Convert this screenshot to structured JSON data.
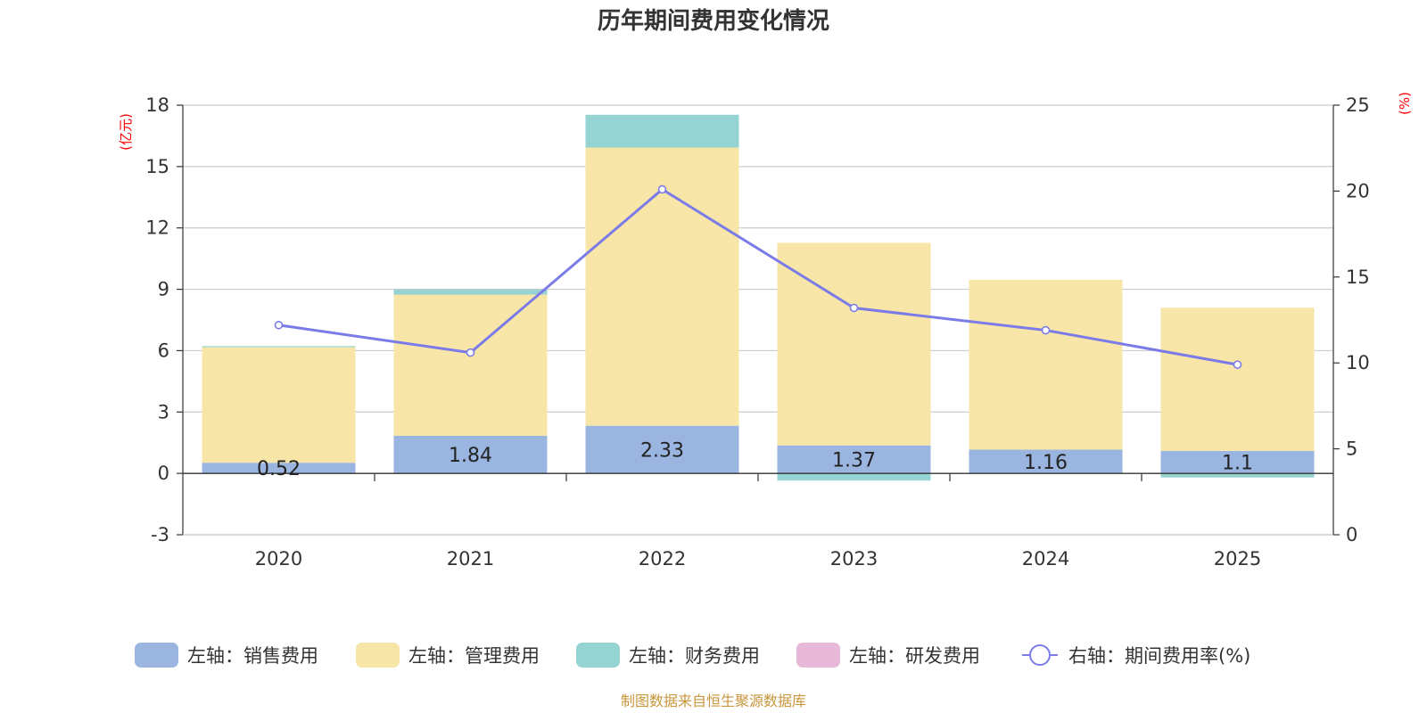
{
  "chart_data": {
    "type": "bar",
    "title": "历年期间费用变化情况",
    "categories": [
      "2020",
      "2021",
      "2022",
      "2023",
      "2024",
      "2025"
    ],
    "left_axis": {
      "unit": "(亿元)",
      "ylim": [
        -3,
        18
      ],
      "ticks": [
        "18",
        "15",
        "12",
        "9",
        "6",
        "3",
        "0",
        "-3"
      ],
      "tick_values": [
        18,
        15,
        12,
        9,
        6,
        3,
        0,
        -3
      ]
    },
    "right_axis": {
      "unit": "(%)",
      "ylim": [
        0,
        25
      ],
      "ticks": [
        "25",
        "20",
        "15",
        "10",
        "5",
        "0"
      ],
      "tick_values": [
        25,
        20,
        15,
        10,
        5,
        0
      ]
    },
    "series": [
      {
        "name": "左轴：销售费用",
        "kind": "bar",
        "axis": "left",
        "color": "#9bb5e1",
        "values": [
          0.52,
          1.84,
          2.33,
          1.37,
          1.16,
          1.1
        ],
        "labels": [
          "0.52",
          "1.84",
          "2.33",
          "1.37",
          "1.16",
          "1.1"
        ]
      },
      {
        "name": "左轴：管理费用",
        "kind": "bar",
        "axis": "left",
        "color": "#f7e6a8",
        "values": [
          5.65,
          6.9,
          13.6,
          9.9,
          8.3,
          7.0
        ]
      },
      {
        "name": "左轴：财务费用",
        "kind": "bar",
        "axis": "left",
        "color": "#96d3d3",
        "values": [
          0.05,
          0.25,
          1.6,
          -0.35,
          0.0,
          -0.2
        ]
      },
      {
        "name": "左轴：研发费用",
        "kind": "bar",
        "axis": "left",
        "color": "#e8b8d8",
        "values": [
          0,
          0,
          0,
          0,
          0,
          0
        ]
      },
      {
        "name": "右轴：期间费用率(%)",
        "kind": "line",
        "axis": "right",
        "color": "#7b7be8",
        "values": [
          12.2,
          10.6,
          20.1,
          13.2,
          11.9,
          9.9
        ]
      }
    ],
    "source": "制图数据来自恒生聚源数据库"
  }
}
